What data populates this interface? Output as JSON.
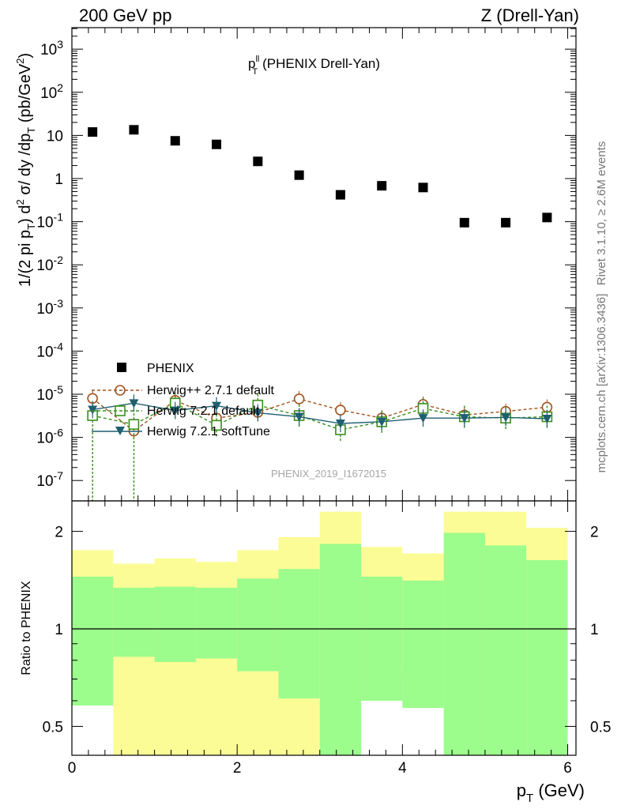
{
  "header": {
    "left": "200 GeV pp",
    "right": "Z (Drell-Yan)"
  },
  "side": {
    "rivet": "Rivet 3.1.10, ≥ 2.6M events",
    "mcplots": "mcplots.cern.ch [arXiv:1306.3436]"
  },
  "watermark": "PHENIX_2019_I1672015",
  "chart_data": [
    {
      "type": "scatter",
      "title": "p_T^ll (PHENIX Drell-Yan)",
      "title_main": "p",
      "title_sup": "ll",
      "title_sub": "T",
      "title_rest": "(PHENIX Drell-Yan)",
      "ylabel": "1/(2 pi p_T) d^2 σ/ dy /dp_T (pb/GeV^2)",
      "xlabel": "p_T (GeV)",
      "xlim": [
        0,
        6.1
      ],
      "ylim": [
        4e-08,
        3000
      ],
      "log_y": true,
      "grid": false,
      "legend_position": "bottom-left",
      "y_ticks": [
        "10^-7",
        "10^-6",
        "10^-5",
        "10^-4",
        "10^-3",
        "10^-2",
        "10^-1",
        "1",
        "10",
        "10^2",
        "10^3"
      ],
      "legend": {
        "phenix": "PHENIX",
        "hpp": "Herwig++ 2.7.1 default",
        "h7def": "Herwig 7.2.1 default",
        "h7soft": "Herwig 7.2.1 softTune"
      },
      "series": [
        {
          "name": "PHENIX",
          "color": "#000000",
          "marker": "filled-square",
          "x": [
            0.25,
            0.75,
            1.25,
            1.75,
            2.25,
            2.75,
            3.25,
            3.75,
            4.25,
            4.75,
            5.25,
            5.75
          ],
          "y": [
            12,
            13.5,
            7.5,
            6.2,
            2.5,
            1.2,
            0.42,
            0.68,
            0.62,
            0.095,
            0.095,
            0.125
          ]
        },
        {
          "name": "Herwig++ 2.7.1 default",
          "color": "#a0521d",
          "marker": "open-circle",
          "x": [
            0.25,
            0.75,
            1.25,
            1.75,
            2.25,
            2.75,
            3.25,
            3.75,
            4.25,
            4.75,
            5.25,
            5.75
          ],
          "y": [
            8e-06,
            1.4e-06,
            7.2e-06,
            2.8e-06,
            3.8e-06,
            7.8e-06,
            4.3e-06,
            2.8e-06,
            5.8e-06,
            3.3e-06,
            4e-06,
            5e-06
          ]
        },
        {
          "name": "Herwig 7.2.1 default",
          "color": "#3a8f1d",
          "marker": "open-square",
          "x": [
            0.25,
            0.75,
            1.25,
            1.75,
            2.25,
            2.75,
            3.25,
            3.75,
            4.25,
            4.75,
            5.25,
            5.75
          ],
          "y": [
            3.2e-06,
            2e-06,
            6.2e-06,
            1.9e-06,
            5.6e-06,
            3.2e-06,
            1.5e-06,
            2.3e-06,
            4.7e-06,
            3e-06,
            2.8e-06,
            3e-06
          ]
        },
        {
          "name": "Herwig 7.2.1 softTune",
          "color": "#1f5f70",
          "marker": "filled-triangle-down",
          "x": [
            0.25,
            0.75,
            1.25,
            1.75,
            2.25,
            2.75,
            3.25,
            3.75,
            4.25,
            4.75,
            5.25,
            5.75
          ],
          "y": [
            4.4e-06,
            6.2e-06,
            4.2e-06,
            5.4e-06,
            3.7e-06,
            3e-06,
            2.1e-06,
            2.3e-06,
            2.8e-06,
            2.8e-06,
            2.9e-06,
            2.7e-06
          ]
        }
      ]
    },
    {
      "type": "area",
      "ylabel": "Ratio to PHENIX",
      "xlabel": "p_T (GeV)",
      "xlim": [
        0,
        6.1
      ],
      "ylim": [
        0.4,
        2.3
      ],
      "log_y": true,
      "x_ticks": [
        "0",
        "2",
        "4",
        "6"
      ],
      "y_ticks": [
        "0.5",
        "1",
        "2"
      ],
      "reference": 1,
      "colors": {
        "stat": "#9cfc8c",
        "total": "#fcfc96"
      },
      "bins": [
        0,
        0.5,
        1,
        1.5,
        2,
        2.5,
        3,
        3.5,
        4,
        4.5,
        5,
        5.5,
        6
      ],
      "green_band": {
        "high": [
          1.45,
          1.34,
          1.35,
          1.34,
          1.43,
          1.53,
          1.83,
          1.45,
          1.41,
          1.98,
          1.81,
          1.63
        ],
        "low": [
          0.58,
          0.82,
          0.79,
          0.81,
          0.74,
          0.61,
          0.37,
          0.6,
          0.57,
          0.37,
          0.36,
          0.36
        ]
      },
      "yellow_band": {
        "high": [
          1.75,
          1.59,
          1.65,
          1.61,
          1.75,
          1.92,
          2.4,
          1.79,
          1.71,
          2.4,
          2.4,
          2.05
        ],
        "low": [
          0.7,
          0.4,
          0.4,
          0.4,
          0.4,
          0.4,
          0.4,
          0.7,
          0.75,
          0.4,
          0.4,
          0.43
        ]
      }
    }
  ]
}
